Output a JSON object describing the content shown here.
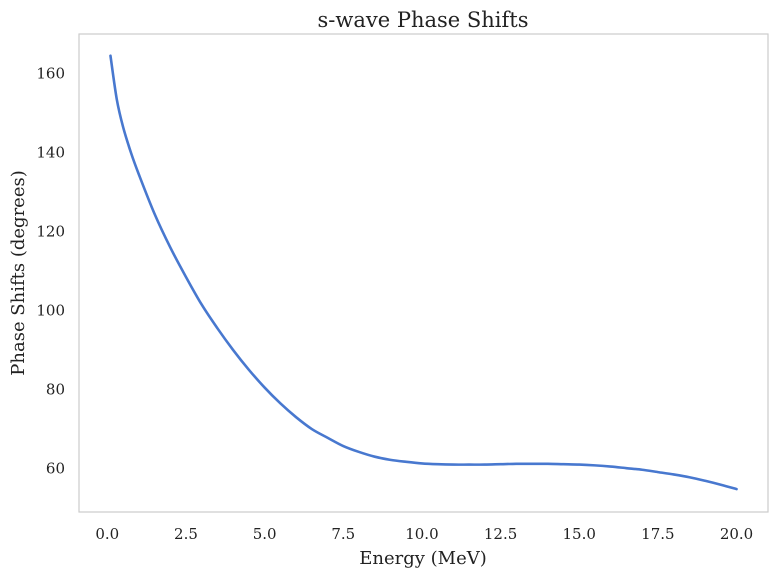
{
  "chart_data": {
    "type": "line",
    "title": "s-wave Phase Shifts",
    "xlabel": "Energy (MeV)",
    "ylabel": "Phase Shifts (degrees)",
    "xlim": [
      -0.9,
      21.0
    ],
    "ylim": [
      49.0,
      170.0
    ],
    "xticks": [
      0.0,
      2.5,
      5.0,
      7.5,
      10.0,
      12.5,
      15.0,
      17.5,
      20.0
    ],
    "xtick_labels": [
      "0.0",
      "2.5",
      "5.0",
      "7.5",
      "10.0",
      "12.5",
      "15.0",
      "17.5",
      "20.0"
    ],
    "yticks": [
      60,
      80,
      100,
      120,
      140,
      160
    ],
    "ytick_labels": [
      "60",
      "80",
      "100",
      "120",
      "140",
      "160"
    ],
    "grid": false,
    "series": [
      {
        "color": "#4878cf",
        "x": [
          0.1,
          0.3,
          0.5,
          0.75,
          1.0,
          1.5,
          2.0,
          2.5,
          3.0,
          3.5,
          4.0,
          4.5,
          5.0,
          5.5,
          6.0,
          6.5,
          7.0,
          7.5,
          8.0,
          8.5,
          9.0,
          9.5,
          10.0,
          10.5,
          11.0,
          11.5,
          12.0,
          12.5,
          13.0,
          13.5,
          14.0,
          14.5,
          15.0,
          15.5,
          16.0,
          16.5,
          17.0,
          17.5,
          18.0,
          18.5,
          19.0,
          19.5,
          20.0
        ],
        "y": [
          164.5,
          153.5,
          146.5,
          140.0,
          134.5,
          124.5,
          116.0,
          108.5,
          101.5,
          95.5,
          90.0,
          85.0,
          80.5,
          76.5,
          73.0,
          70.0,
          67.8,
          65.7,
          64.2,
          63.0,
          62.2,
          61.7,
          61.3,
          61.1,
          61.0,
          61.0,
          61.0,
          61.1,
          61.2,
          61.2,
          61.2,
          61.1,
          61.0,
          60.8,
          60.5,
          60.1,
          59.7,
          59.1,
          58.5,
          57.8,
          56.9,
          55.9,
          54.8
        ]
      }
    ]
  }
}
